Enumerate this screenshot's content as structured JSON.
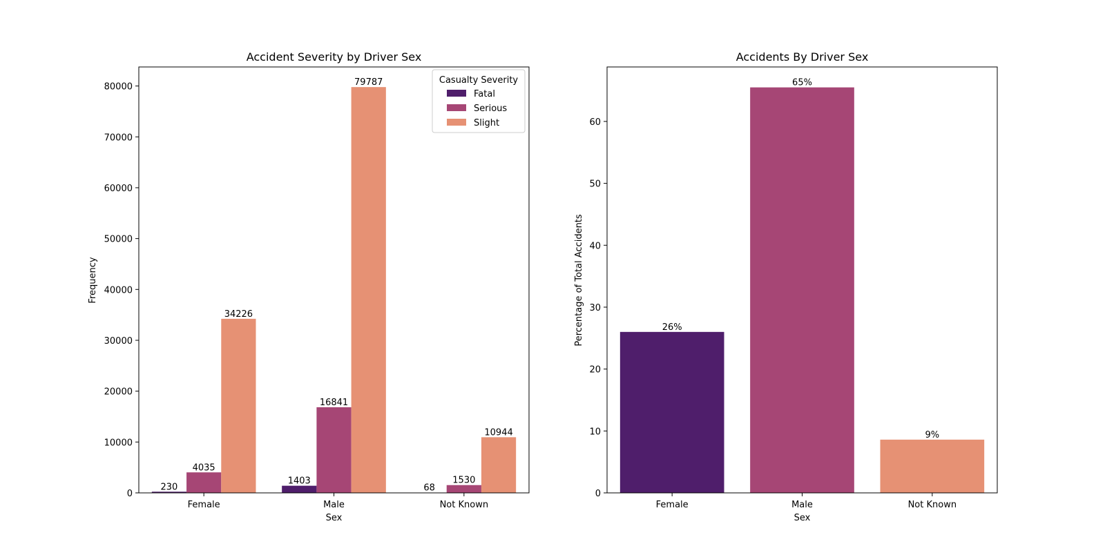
{
  "chart_data": [
    {
      "type": "bar",
      "title": "Accident Severity by Driver Sex",
      "xlabel": "Sex",
      "ylabel": "Frequency",
      "categories": [
        "Female",
        "Male",
        "Not Known"
      ],
      "ylim": [
        0,
        83744
      ],
      "yticks": [
        0,
        10000,
        20000,
        30000,
        40000,
        50000,
        60000,
        70000,
        80000
      ],
      "legend": {
        "title": "Casualty Severity",
        "placement": "top-right"
      },
      "series": [
        {
          "name": "Fatal",
          "values": [
            230,
            1403,
            68
          ],
          "labels": [
            "230",
            "1403",
            "68"
          ],
          "color": "#4f1e6b"
        },
        {
          "name": "Serious",
          "values": [
            4035,
            16841,
            1530
          ],
          "labels": [
            "4035",
            "16841",
            "1530"
          ],
          "color": "#a64675"
        },
        {
          "name": "Slight",
          "values": [
            34226,
            79787,
            10944
          ],
          "labels": [
            "34226",
            "79787",
            "10944"
          ],
          "color": "#e69174"
        }
      ]
    },
    {
      "type": "bar",
      "title": "Accidents By Driver Sex",
      "xlabel": "Sex",
      "ylabel": "Percentage of Total Accidents",
      "categories": [
        "Female",
        "Male",
        "Not Known"
      ],
      "ylim": [
        0,
        68.8
      ],
      "yticks": [
        0,
        10,
        20,
        30,
        40,
        50,
        60
      ],
      "values": [
        26.0,
        65.5,
        8.6
      ],
      "labels": [
        "26%",
        "65%",
        "9%"
      ],
      "colors": [
        "#4f1e6b",
        "#a64675",
        "#e69174"
      ]
    }
  ]
}
